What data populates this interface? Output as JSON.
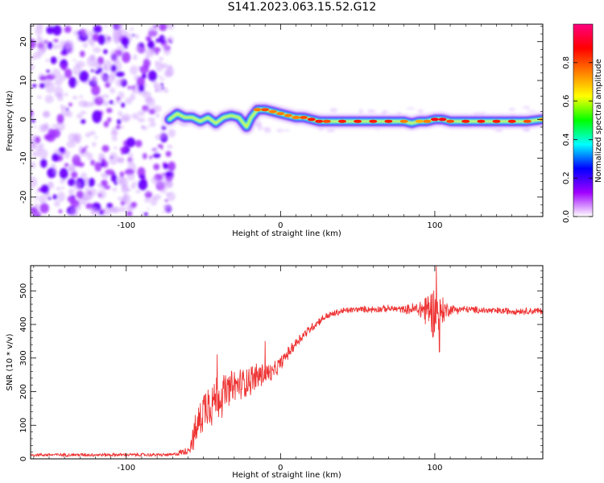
{
  "figure_title": "S141.2023.063.15.52.G12",
  "chart_data": [
    {
      "type": "heatmap",
      "title": "",
      "xlabel": "Height of straight line (km)",
      "ylabel": "Frequency (Hz)",
      "xlim": [
        -162,
        170
      ],
      "ylim": [
        -25,
        24.5
      ],
      "xticks": [
        -100,
        0,
        100
      ],
      "yticks": [
        -20,
        -10,
        0,
        10,
        20
      ],
      "colorbar": {
        "label": "Normalized spectral amplitude",
        "range": [
          0,
          1
        ],
        "ticks": [
          0.0,
          0.2,
          0.4,
          0.6,
          0.8
        ],
        "colormap": [
          "#ffffff",
          "#a000ff",
          "#0000ff",
          "#00ffff",
          "#00ff00",
          "#ffff00",
          "#ff7f00",
          "#ff0000",
          "#ff0080"
        ]
      },
      "noise_region": {
        "x_from": -162,
        "x_to": -70,
        "freq_from": -25,
        "freq_to": 24.5,
        "typical_amplitude": 0.2
      },
      "ridge": {
        "x": [
          -72,
          -67,
          -62,
          -57,
          -52,
          -47,
          -42,
          -37,
          -32,
          -27,
          -22,
          -19,
          -15,
          -10,
          -5,
          0,
          5,
          10,
          15,
          20,
          25,
          30,
          40,
          50,
          60,
          70,
          80,
          85,
          90,
          95,
          100,
          105,
          110,
          120,
          130,
          140,
          150,
          160,
          170
        ],
        "freq": [
          0,
          1.5,
          0.5,
          0.5,
          -0.5,
          0.5,
          -1,
          0.5,
          1,
          0.5,
          -2,
          0.5,
          2.5,
          2.5,
          2,
          1.5,
          1,
          0.5,
          0.5,
          0,
          -0.5,
          -0.5,
          -0.5,
          -0.5,
          -0.5,
          -0.5,
          -0.5,
          -1,
          -0.5,
          -0.5,
          0,
          0,
          -0.5,
          -0.5,
          -0.5,
          -0.5,
          -0.5,
          -0.5,
          0
        ],
        "amplitude": [
          0.45,
          0.55,
          0.6,
          0.6,
          0.55,
          0.55,
          0.5,
          0.6,
          0.65,
          0.6,
          0.55,
          0.6,
          0.75,
          0.8,
          0.75,
          0.75,
          0.75,
          0.75,
          0.8,
          0.85,
          0.85,
          0.8,
          0.85,
          0.85,
          0.85,
          0.85,
          0.75,
          0.65,
          0.7,
          0.75,
          0.9,
          0.9,
          0.8,
          0.85,
          0.85,
          0.85,
          0.85,
          0.8,
          0.7
        ]
      }
    },
    {
      "type": "line",
      "title": "",
      "xlabel": "Height of straight line (km)",
      "ylabel": "SNR (10 * v/v)",
      "xlim": [
        -162,
        170
      ],
      "ylim": [
        0,
        575
      ],
      "xticks": [
        -100,
        0,
        100
      ],
      "yticks": [
        0,
        100,
        200,
        300,
        400,
        500
      ],
      "series": [
        {
          "color": "#ee3333",
          "x": [
            -162,
            -140,
            -120,
            -100,
            -80,
            -70,
            -60,
            -55,
            -50,
            -45,
            -40,
            -35,
            -30,
            -25,
            -20,
            -15,
            -10,
            -5,
            0,
            5,
            10,
            15,
            20,
            25,
            30,
            40,
            50,
            60,
            70,
            80,
            90,
            95,
            100,
            105,
            110,
            120,
            140,
            160,
            170
          ],
          "mean": [
            12,
            12,
            12,
            12,
            12,
            12,
            25,
            80,
            150,
            170,
            185,
            200,
            215,
            225,
            235,
            245,
            255,
            255,
            285,
            315,
            345,
            370,
            390,
            410,
            425,
            440,
            445,
            445,
            447,
            445,
            445,
            445,
            440,
            440,
            445,
            445,
            440,
            440,
            440
          ],
          "spread": [
            6,
            6,
            6,
            6,
            6,
            6,
            14,
            60,
            75,
            90,
            80,
            65,
            60,
            55,
            55,
            50,
            45,
            30,
            25,
            20,
            20,
            18,
            16,
            14,
            12,
            12,
            10,
            12,
            12,
            12,
            30,
            70,
            90,
            50,
            18,
            12,
            12,
            12,
            12
          ],
          "peaks": [
            {
              "x": -47,
              "y": 205
            },
            {
              "x": -41,
              "y": 310
            },
            {
              "x": -10,
              "y": 350
            },
            {
              "x": 101,
              "y": 572
            },
            {
              "x": 103,
              "y": 318
            }
          ]
        }
      ]
    }
  ]
}
